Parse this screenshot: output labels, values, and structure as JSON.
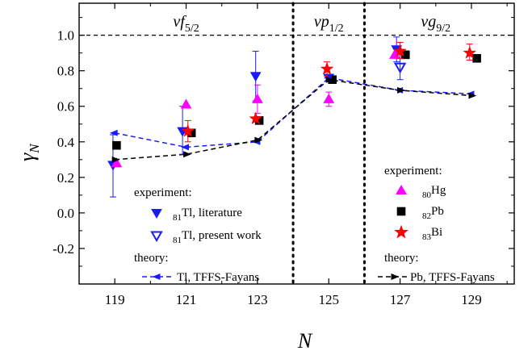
{
  "chart_data": {
    "type": "scatter",
    "xlabel": "N",
    "ylabel_main": "γ",
    "ylabel_sub": "N",
    "xlim": [
      118,
      130.2
    ],
    "ylim": [
      -0.4,
      1.18
    ],
    "xticks": [
      119,
      121,
      123,
      125,
      127,
      129
    ],
    "yticks": [
      -0.2,
      0.0,
      0.2,
      0.4,
      0.6,
      0.8,
      1.0
    ],
    "ytick_labels": [
      "-0.2",
      "0.0",
      "0.2",
      "0.4",
      "0.6",
      "0.8",
      "1.0"
    ],
    "hline": 1.0,
    "vlines": [
      124.0,
      126.0
    ],
    "regions": [
      {
        "italic": "νf",
        "sub": "5/2",
        "x": 121
      },
      {
        "italic": "νp",
        "sub": "1/2",
        "x": 125
      },
      {
        "italic": "νg",
        "sub": "9/2",
        "x": 128
      }
    ],
    "series": [
      {
        "name": "81Tl, literature",
        "marker": "triangle-down",
        "color": "#1a1aff",
        "filled": true,
        "points": [
          {
            "x": 118.95,
            "y": 0.27,
            "lo": 0.09,
            "hi": 0.44
          },
          {
            "x": 120.9,
            "y": 0.46,
            "lo": 0.33,
            "hi": 0.6
          },
          {
            "x": 122.95,
            "y": 0.77,
            "lo": 0.63,
            "hi": 0.91
          },
          {
            "x": 125.0,
            "y": 0.76
          },
          {
            "x": 126.9,
            "y": 0.92,
            "lo": 0.85,
            "hi": 0.99
          }
        ]
      },
      {
        "name": "81Tl, present work",
        "marker": "triangle-down",
        "color": "#1a1aff",
        "filled": false,
        "points": [
          {
            "x": 127.0,
            "y": 0.82,
            "lo": 0.75,
            "hi": 0.89
          }
        ]
      },
      {
        "name": "80Hg",
        "marker": "triangle-up",
        "color": "#ff00ff",
        "filled": true,
        "points": [
          {
            "x": 119.05,
            "y": 0.28
          },
          {
            "x": 121.0,
            "y": 0.61
          },
          {
            "x": 123.0,
            "y": 0.64,
            "lo": 0.56,
            "hi": 0.72
          },
          {
            "x": 125.0,
            "y": 0.64,
            "lo": 0.6,
            "hi": 0.68
          },
          {
            "x": 126.85,
            "y": 0.89
          }
        ]
      },
      {
        "name": "82Pb",
        "marker": "square",
        "color": "#000000",
        "filled": true,
        "points": [
          {
            "x": 119.05,
            "y": 0.38
          },
          {
            "x": 121.15,
            "y": 0.45
          },
          {
            "x": 123.05,
            "y": 0.52
          },
          {
            "x": 125.1,
            "y": 0.75
          },
          {
            "x": 127.15,
            "y": 0.89
          },
          {
            "x": 129.15,
            "y": 0.87
          }
        ]
      },
      {
        "name": "83Bi",
        "marker": "star",
        "color": "#ff0000",
        "filled": true,
        "points": [
          {
            "x": 121.05,
            "y": 0.46,
            "lo": 0.4,
            "hi": 0.52
          },
          {
            "x": 122.95,
            "y": 0.53
          },
          {
            "x": 124.95,
            "y": 0.81,
            "lo": 0.77,
            "hi": 0.85
          },
          {
            "x": 127.0,
            "y": 0.91,
            "lo": 0.87,
            "hi": 0.96
          },
          {
            "x": 128.95,
            "y": 0.9,
            "lo": 0.86,
            "hi": 0.95
          }
        ]
      },
      {
        "name": "Tl, TFFS-Fayans",
        "marker": "arrow-left",
        "color": "#1a1aff",
        "line": "dashed",
        "points": [
          {
            "x": 119,
            "y": 0.45
          },
          {
            "x": 121,
            "y": 0.37
          },
          {
            "x": 123,
            "y": 0.4
          },
          {
            "x": 125,
            "y": 0.76
          },
          {
            "x": 127,
            "y": 0.69
          },
          {
            "x": 129,
            "y": 0.67
          }
        ]
      },
      {
        "name": "Pb, TFFS-Fayans",
        "marker": "arrow-right",
        "color": "#000000",
        "line": "dashed",
        "points": [
          {
            "x": 119,
            "y": 0.3
          },
          {
            "x": 121,
            "y": 0.33
          },
          {
            "x": 123,
            "y": 0.41
          },
          {
            "x": 125,
            "y": 0.75
          },
          {
            "x": 127,
            "y": 0.69
          },
          {
            "x": 129,
            "y": 0.66
          }
        ]
      }
    ],
    "legend_left": {
      "experiment_label": "experiment:",
      "theory_label": "theory:",
      "entries": [
        {
          "pre": "81",
          "text": "Tl, literature",
          "series": 0
        },
        {
          "pre": "81",
          "text": "Tl, present work",
          "series": 1
        },
        {
          "pre": "",
          "text": "Tl, TFFS-Fayans",
          "series": 5
        }
      ]
    },
    "legend_right": {
      "experiment_label": "experiment:",
      "theory_label": "theory:",
      "entries": [
        {
          "pre": "80",
          "text": "Hg",
          "series": 2
        },
        {
          "pre": "82",
          "text": "Pb",
          "series": 3
        },
        {
          "pre": "83",
          "text": "Bi",
          "series": 4
        },
        {
          "pre": "",
          "text": "Pb, TFFS-Fayans",
          "series": 6
        }
      ]
    }
  }
}
